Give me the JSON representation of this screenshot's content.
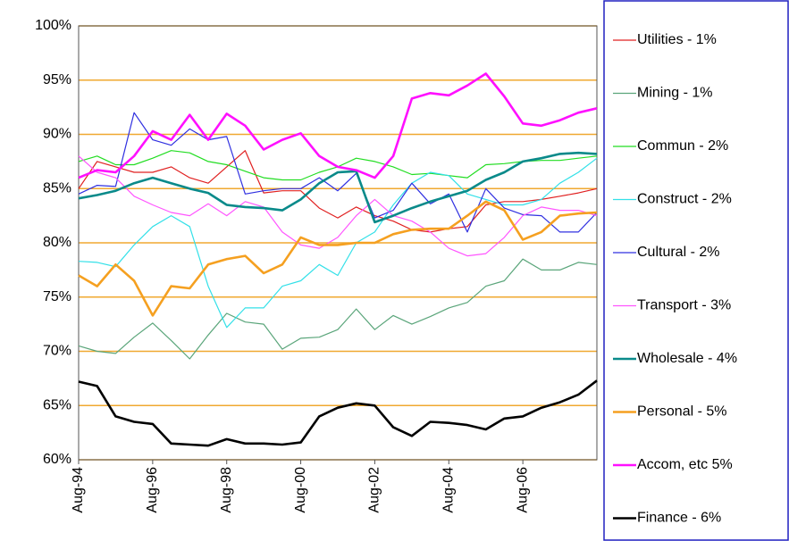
{
  "chart_data": {
    "type": "line",
    "categories": [
      "Aug-94",
      null,
      null,
      null,
      "Aug-96",
      null,
      null,
      null,
      "Aug-98",
      null,
      null,
      null,
      "Aug-00",
      null,
      null,
      null,
      "Aug-02",
      null,
      null,
      null,
      "Aug-04",
      null,
      null,
      null,
      "Aug-06",
      null,
      null,
      null,
      null
    ],
    "ylim": [
      60,
      100
    ],
    "yticks": [
      {
        "value": 60,
        "label": "60%"
      },
      {
        "value": 65,
        "label": "65%"
      },
      {
        "value": 70,
        "label": "70%"
      },
      {
        "value": 75,
        "label": "75%"
      },
      {
        "value": 80,
        "label": "80%"
      },
      {
        "value": 85,
        "label": "85%"
      },
      {
        "value": 90,
        "label": "90%"
      },
      {
        "value": 95,
        "label": "95%"
      },
      {
        "value": 100,
        "label": "100%"
      }
    ],
    "grid": true,
    "grid_color": "#f0a830",
    "series": [
      {
        "name": "Utilities - 1%",
        "color": "#e02020",
        "values": [
          85,
          87.5,
          87,
          86.5,
          86.5,
          87,
          86,
          85.5,
          87,
          88.5,
          84.6,
          84.8,
          84.8,
          83.2,
          82.3,
          83.3,
          82.5,
          82,
          81.2,
          81,
          81.3,
          81.5,
          83.5,
          83.8,
          83.8,
          84,
          84.3,
          84.6,
          85
        ]
      },
      {
        "name": "Mining  - 1%",
        "color": "#5aa57a",
        "values": [
          70.5,
          70,
          69.8,
          71.3,
          72.6,
          71,
          69.3,
          71.5,
          73.5,
          72.7,
          72.5,
          70.2,
          71.2,
          71.3,
          72,
          73.9,
          72,
          73.3,
          72.5,
          73.2,
          74,
          74.5,
          76,
          76.5,
          78.5,
          77.5,
          77.5,
          78.2,
          78
        ]
      },
      {
        "name": "Commun - 2%",
        "color": "#22dd22",
        "values": [
          87.5,
          88,
          87.2,
          87.2,
          87.8,
          88.5,
          88.3,
          87.5,
          87.2,
          86.6,
          86,
          85.8,
          85.8,
          86.5,
          87,
          87.8,
          87.5,
          87,
          86.3,
          86.4,
          86.2,
          86,
          87.2,
          87.3,
          87.5,
          87.6,
          87.6,
          87.8,
          88
        ]
      },
      {
        "name": "Construct - 2%",
        "color": "#33e0e8",
        "values": [
          78.3,
          78.2,
          77.8,
          79.8,
          81.5,
          82.5,
          81.5,
          76,
          72.2,
          74,
          74,
          76,
          76.5,
          78,
          77,
          80,
          81,
          83.5,
          85.5,
          86.5,
          86.2,
          84.5,
          84,
          83.5,
          83.5,
          84,
          85.5,
          86.5,
          87.8
        ]
      },
      {
        "name": "Cultural - 2%",
        "color": "#3030e0",
        "values": [
          84.5,
          85.3,
          85.2,
          92,
          89.5,
          89,
          90.5,
          89.5,
          89.8,
          84.5,
          84.8,
          85,
          85,
          86,
          84.8,
          86.4,
          82.3,
          83,
          85.5,
          83.6,
          84.5,
          81,
          85,
          83.2,
          82.6,
          82.5,
          81,
          81,
          82.8
        ]
      },
      {
        "name": "Transport - 3%",
        "color": "#ff55ff",
        "values": [
          88,
          86.5,
          86,
          84.3,
          83.5,
          82.8,
          82.5,
          83.6,
          82.5,
          83.8,
          83.3,
          81,
          79.8,
          79.5,
          80.5,
          82.5,
          84,
          82.5,
          82,
          81,
          79.5,
          78.8,
          79,
          80.5,
          82.5,
          83.3,
          83,
          83,
          82.5
        ]
      },
      {
        "name": "Wholesale - 4%",
        "color": "#0a8a8a",
        "values": [
          84.1,
          84.4,
          84.8,
          85.5,
          86,
          85.5,
          85,
          84.6,
          83.5,
          83.3,
          83.2,
          83,
          84,
          85.5,
          86.5,
          86.6,
          81.9,
          82.5,
          83.2,
          83.8,
          84.3,
          84.8,
          85.8,
          86.5,
          87.5,
          87.8,
          88.2,
          88.3,
          88.2
        ]
      },
      {
        "name": "Personal - 5%",
        "color": "#f5a020",
        "values": [
          77,
          76,
          78,
          76.5,
          73.3,
          76,
          75.8,
          78,
          78.5,
          78.8,
          77.2,
          78,
          80.5,
          79.8,
          79.8,
          80,
          80,
          80.8,
          81.2,
          81.3,
          81.3,
          82.5,
          83.8,
          83,
          80.3,
          81,
          82.5,
          82.7,
          82.8
        ]
      },
      {
        "name": "Accom, etc 5%",
        "color": "#ff10ff",
        "values": [
          86,
          86.7,
          86.5,
          88,
          90.3,
          89.5,
          91.8,
          89.5,
          91.9,
          90.8,
          88.6,
          89.5,
          90.1,
          88,
          87,
          86.7,
          86,
          88,
          93.3,
          93.8,
          93.6,
          94.5,
          95.6,
          93.5,
          91,
          90.8,
          91.3,
          92,
          92.4
        ]
      },
      {
        "name": "Finance - 6%",
        "color": "#000000",
        "values": [
          67.2,
          66.8,
          64,
          63.5,
          63.3,
          61.5,
          61.4,
          61.3,
          61.9,
          61.5,
          61.5,
          61.4,
          61.6,
          64,
          64.8,
          65.2,
          65,
          63,
          62.2,
          63.5,
          63.4,
          63.2,
          62.8,
          63.8,
          64,
          64.8,
          65.3,
          66,
          67.3
        ]
      }
    ]
  }
}
